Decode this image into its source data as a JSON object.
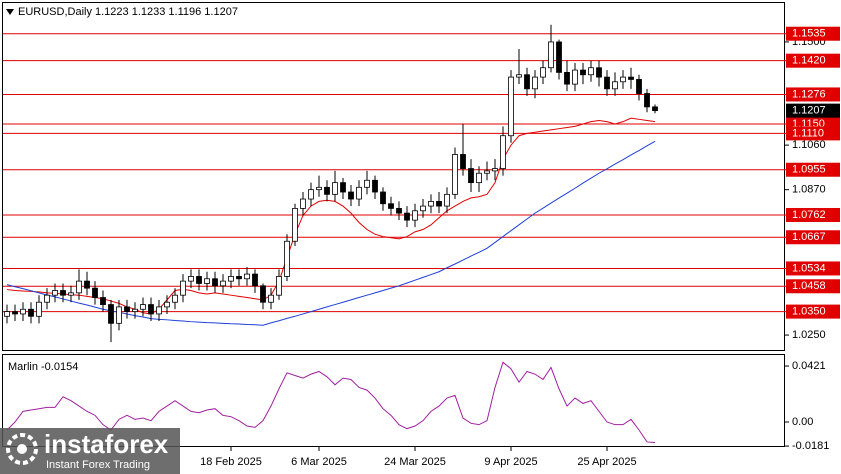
{
  "chart_data": [
    {
      "type": "candlestick",
      "title": "EURUSD,Daily  1.1223 1.1233 1.1196 1.1207",
      "categories": [
        null,
        null,
        null,
        null,
        null,
        null,
        null,
        null,
        null,
        null,
        null,
        null,
        null,
        null,
        null,
        null,
        null,
        null,
        null,
        null,
        null,
        null,
        null,
        null,
        null,
        null,
        null,
        null,
        "18 Feb 2025",
        null,
        null,
        null,
        null,
        null,
        null,
        null,
        null,
        null,
        null,
        "6 Mar 2025",
        null,
        null,
        null,
        null,
        null,
        null,
        null,
        null,
        null,
        null,
        null,
        "24 Mar 2025",
        null,
        null,
        null,
        null,
        null,
        null,
        null,
        null,
        null,
        null,
        null,
        "9 Apr 2025",
        null,
        null,
        null,
        null,
        null,
        null,
        null,
        null,
        null,
        null,
        null,
        "25 Apr 2025",
        null,
        null,
        null,
        null,
        null,
        null
      ],
      "open": [
        1.033,
        1.035,
        1.034,
        1.036,
        1.033,
        1.039,
        1.042,
        1.044,
        1.042,
        1.043,
        1.048,
        1.045,
        1.041,
        1.038,
        1.03,
        1.037,
        1.035,
        1.036,
        1.038,
        1.034,
        1.037,
        1.039,
        1.042,
        1.048,
        1.05,
        1.047,
        1.049,
        1.046,
        1.048,
        1.05,
        1.049,
        1.051,
        1.046,
        1.039,
        1.042,
        1.05,
        1.065,
        1.079,
        1.083,
        1.087,
        1.088,
        1.085,
        1.09,
        1.086,
        1.083,
        1.088,
        1.091,
        1.086,
        1.081,
        1.079,
        1.077,
        1.074,
        1.078,
        1.08,
        1.082,
        1.08,
        1.085,
        1.102,
        1.096,
        1.09,
        1.094,
        1.095,
        1.096,
        1.11,
        1.135,
        1.136,
        1.13,
        1.135,
        1.139,
        1.15,
        1.137,
        1.132,
        1.138,
        1.136,
        1.139,
        1.135,
        1.13,
        1.133,
        1.135,
        1.134,
        1.128,
        1.1223
      ],
      "high": [
        1.038,
        1.038,
        1.039,
        1.039,
        1.042,
        1.045,
        1.047,
        1.047,
        1.046,
        1.053,
        1.052,
        1.048,
        1.044,
        1.04,
        1.04,
        1.04,
        1.039,
        1.041,
        1.041,
        1.04,
        1.042,
        1.045,
        1.051,
        1.053,
        1.053,
        1.052,
        1.052,
        1.051,
        1.053,
        1.053,
        1.054,
        1.053,
        1.047,
        1.045,
        1.053,
        1.068,
        1.081,
        1.086,
        1.09,
        1.093,
        1.091,
        1.095,
        1.092,
        1.089,
        1.091,
        1.095,
        1.093,
        1.088,
        1.084,
        1.082,
        1.08,
        1.081,
        1.083,
        1.085,
        1.086,
        1.088,
        1.105,
        1.115,
        1.1,
        1.097,
        1.099,
        1.1,
        1.114,
        1.138,
        1.147,
        1.139,
        1.138,
        1.142,
        1.1573,
        1.151,
        1.142,
        1.141,
        1.141,
        1.142,
        1.142,
        1.138,
        1.137,
        1.138,
        1.139,
        1.136,
        1.13,
        1.1233
      ],
      "low": [
        1.03,
        1.031,
        1.031,
        1.03,
        1.03,
        1.036,
        1.039,
        1.039,
        1.039,
        1.04,
        1.042,
        1.038,
        1.035,
        1.022,
        1.027,
        1.032,
        1.032,
        1.033,
        1.031,
        1.031,
        1.034,
        1.036,
        1.039,
        1.045,
        1.044,
        1.044,
        1.043,
        1.043,
        1.045,
        1.046,
        1.046,
        1.043,
        1.036,
        1.036,
        1.04,
        1.048,
        1.063,
        1.076,
        1.08,
        1.084,
        1.082,
        1.082,
        1.083,
        1.08,
        1.08,
        1.085,
        1.083,
        1.078,
        1.076,
        1.074,
        1.071,
        1.071,
        1.075,
        1.077,
        1.077,
        1.077,
        1.083,
        1.093,
        1.086,
        1.086,
        1.091,
        1.091,
        1.093,
        1.107,
        1.132,
        1.127,
        1.126,
        1.132,
        1.137,
        1.134,
        1.129,
        1.129,
        1.132,
        1.133,
        1.131,
        1.127,
        1.127,
        1.13,
        1.13,
        1.125,
        1.12,
        1.1196
      ],
      "close": [
        1.035,
        1.034,
        1.036,
        1.033,
        1.039,
        1.042,
        1.044,
        1.042,
        1.043,
        1.048,
        1.045,
        1.041,
        1.038,
        1.03,
        1.037,
        1.035,
        1.036,
        1.038,
        1.034,
        1.037,
        1.039,
        1.042,
        1.048,
        1.05,
        1.047,
        1.049,
        1.046,
        1.048,
        1.05,
        1.049,
        1.051,
        1.046,
        1.039,
        1.042,
        1.05,
        1.065,
        1.079,
        1.083,
        1.087,
        1.088,
        1.085,
        1.09,
        1.086,
        1.083,
        1.088,
        1.091,
        1.086,
        1.081,
        1.079,
        1.077,
        1.074,
        1.078,
        1.08,
        1.082,
        1.08,
        1.085,
        1.102,
        1.096,
        1.09,
        1.094,
        1.095,
        1.096,
        1.11,
        1.135,
        1.136,
        1.13,
        1.135,
        1.139,
        1.15,
        1.137,
        1.132,
        1.138,
        1.136,
        1.139,
        1.135,
        1.13,
        1.133,
        1.135,
        1.134,
        1.128,
        1.1223,
        1.1207
      ],
      "series": [
        {
          "color": "#e00000",
          "values": [
            1.0444,
            1.044,
            1.0438,
            1.0436,
            1.0434,
            1.043,
            1.0428,
            1.0425,
            1.0422,
            1.042,
            1.0415,
            1.041,
            1.0405,
            1.0395,
            1.0385,
            1.037,
            1.036,
            1.0345,
            1.034,
            1.036,
            1.04,
            1.044,
            1.0445,
            1.044,
            1.043,
            1.0425,
            1.043,
            1.0425,
            1.042,
            1.0415,
            1.041,
            1.0405,
            1.04,
            1.042,
            1.048,
            1.058,
            1.068,
            1.076,
            1.08,
            1.082,
            1.0825,
            1.082,
            1.08,
            1.077,
            1.073,
            1.07,
            1.068,
            1.067,
            1.0665,
            1.066,
            1.067,
            1.069,
            1.07,
            1.072,
            1.075,
            1.078,
            1.08,
            1.082,
            1.0835,
            1.084,
            1.085,
            1.09,
            1.1,
            1.106,
            1.11,
            1.111,
            1.1115,
            1.112,
            1.1125,
            1.113,
            1.1135,
            1.114,
            1.115,
            1.116,
            1.1165,
            1.116,
            1.115,
            1.116,
            1.1175,
            1.117,
            1.1165,
            1.116
          ]
        },
        {
          "color": "#1f3fd8",
          "values": [
            1.0465,
            1.0456,
            1.0448,
            1.0439,
            1.043,
            1.0421,
            1.0413,
            1.0404,
            1.0395,
            1.0386,
            1.0378,
            1.0369,
            1.036,
            1.0353,
            1.0347,
            1.034,
            1.0333,
            1.0327,
            1.032,
            1.0317,
            1.0315,
            1.0312,
            1.031,
            1.0307,
            1.0305,
            1.0303,
            1.0302,
            1.03,
            1.0298,
            1.0297,
            1.0295,
            1.0294,
            1.0292,
            1.0302,
            1.0311,
            1.0321,
            1.033,
            1.034,
            1.035,
            1.036,
            1.037,
            1.038,
            1.039,
            1.04,
            1.041,
            1.042,
            1.043,
            1.044,
            1.045,
            1.046,
            1.0472,
            1.0484,
            1.0496,
            1.0508,
            1.052,
            1.0537,
            1.0553,
            1.057,
            1.0587,
            1.0603,
            1.062,
            1.0645,
            1.067,
            1.0695,
            1.072,
            1.0745,
            1.077,
            1.0791,
            1.0813,
            1.0834,
            1.0855,
            1.0876,
            1.0898,
            1.0919,
            1.094,
            1.0959,
            1.0979,
            1.0998,
            1.1018,
            1.1037,
            1.1057,
            1.1076
          ]
        }
      ],
      "levels": [
        1.1535,
        {
          "value": 1.142,
          "label": "1.1420"
        },
        1.1276,
        {
          "value": 1.115,
          "label": "1.1150"
        },
        {
          "value": 1.111,
          "label": "1.1110"
        },
        1.0955,
        1.0762,
        1.0667,
        1.0534,
        1.0458,
        {
          "value": 1.035,
          "label": "1.0350"
        }
      ],
      "level_color": "#e00000",
      "last_price": 1.1207,
      "ylim": [
        1.0182,
        1.1666
      ],
      "yticks": [
        {
          "value": 1.15,
          "label": "1.1500"
        },
        {
          "value": 1.106,
          "label": "1.1060"
        },
        {
          "value": 1.087,
          "label": "1.0870"
        },
        {
          "value": 1.025,
          "label": "1.0250"
        }
      ]
    },
    {
      "type": "line",
      "title": "Marlin -0.0154",
      "color": "#a020a0",
      "values": [
        -0.006,
        0.0,
        0.008,
        0.009,
        0.01,
        0.011,
        0.011,
        0.019,
        0.016,
        0.012,
        0.008,
        0.005,
        -0.002,
        -0.006,
        0.002,
        0.005,
        0.002,
        0.003,
        0.001,
        0.008,
        0.012,
        0.016,
        0.012,
        0.008,
        0.007,
        0.009,
        0.01,
        0.005,
        0.004,
        0.001,
        -0.003,
        -0.004,
        0.001,
        0.012,
        0.025,
        0.037,
        0.035,
        0.033,
        0.036,
        0.038,
        0.034,
        0.028,
        0.033,
        0.032,
        0.026,
        0.024,
        0.018,
        0.01,
        0.005,
        -0.002,
        -0.005,
        -0.003,
        0.001,
        0.008,
        0.012,
        0.018,
        0.02,
        0.003,
        -0.001,
        -0.002,
        0.001,
        0.026,
        0.045,
        0.04,
        0.03,
        0.038,
        0.036,
        0.032,
        0.041,
        0.025,
        0.012,
        0.018,
        0.014,
        0.016,
        0.008,
        0.0,
        -0.002,
        -0.002,
        0.002,
        -0.006,
        -0.015,
        -0.0154
      ],
      "ylim": [
        -0.0188,
        0.0504
      ],
      "yticks": [
        0.0421,
        {
          "value": 0,
          "label": "0.00"
        },
        -0.0181
      ]
    }
  ],
  "logo": {
    "brand": "instaforex",
    "tagline": "Instant Forex Trading"
  }
}
